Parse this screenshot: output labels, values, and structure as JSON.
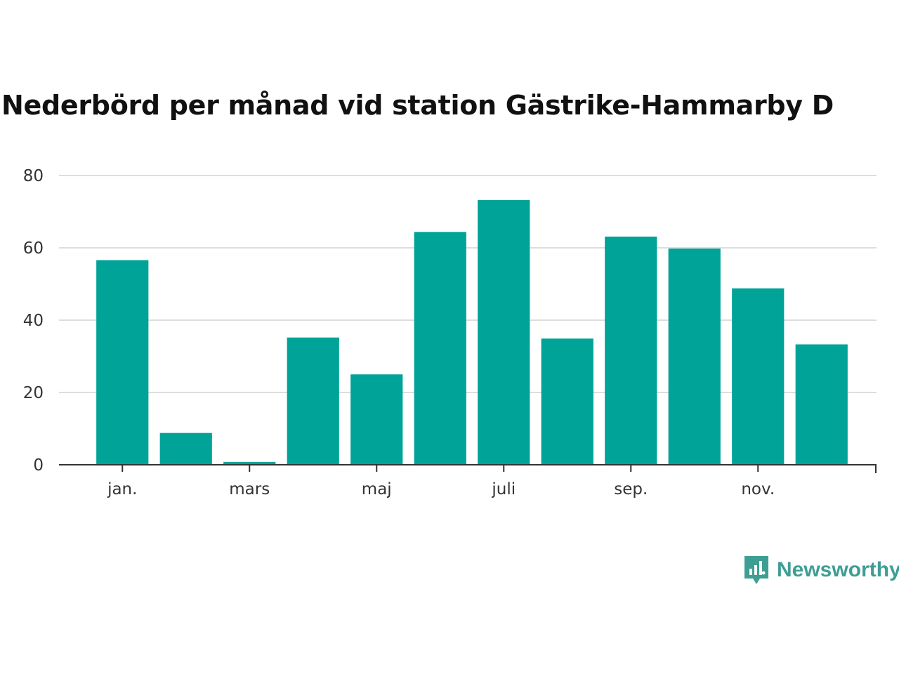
{
  "chart_data": {
    "type": "bar",
    "title": "Nederbörd per månad vid station Gästrike-Hammarby D",
    "categories": [
      "jan.",
      "feb.",
      "mars",
      "apr.",
      "maj",
      "juni",
      "juli",
      "aug.",
      "sep.",
      "okt.",
      "nov.",
      "dec."
    ],
    "x_tick_labels": [
      {
        "index": 0,
        "label": "jan."
      },
      {
        "index": 2,
        "label": "mars"
      },
      {
        "index": 4,
        "label": "maj"
      },
      {
        "index": 6,
        "label": "juli"
      },
      {
        "index": 8,
        "label": "sep."
      },
      {
        "index": 10,
        "label": "nov."
      }
    ],
    "values": [
      56.6,
      8.8,
      0.8,
      35.2,
      25.0,
      64.4,
      73.2,
      34.9,
      63.1,
      59.8,
      48.8,
      33.3
    ],
    "xlabel": "",
    "ylabel": "",
    "ylim": [
      0,
      80
    ],
    "yticks": [
      0,
      20,
      40,
      60,
      80
    ],
    "grid": true,
    "colors": {
      "bar": "#00a398",
      "grid": "#dddddd",
      "axis": "#333333"
    }
  },
  "brand": {
    "name": "Newsworthy",
    "color": "#3e9e94",
    "icon": "newsworthy-logo-icon"
  }
}
